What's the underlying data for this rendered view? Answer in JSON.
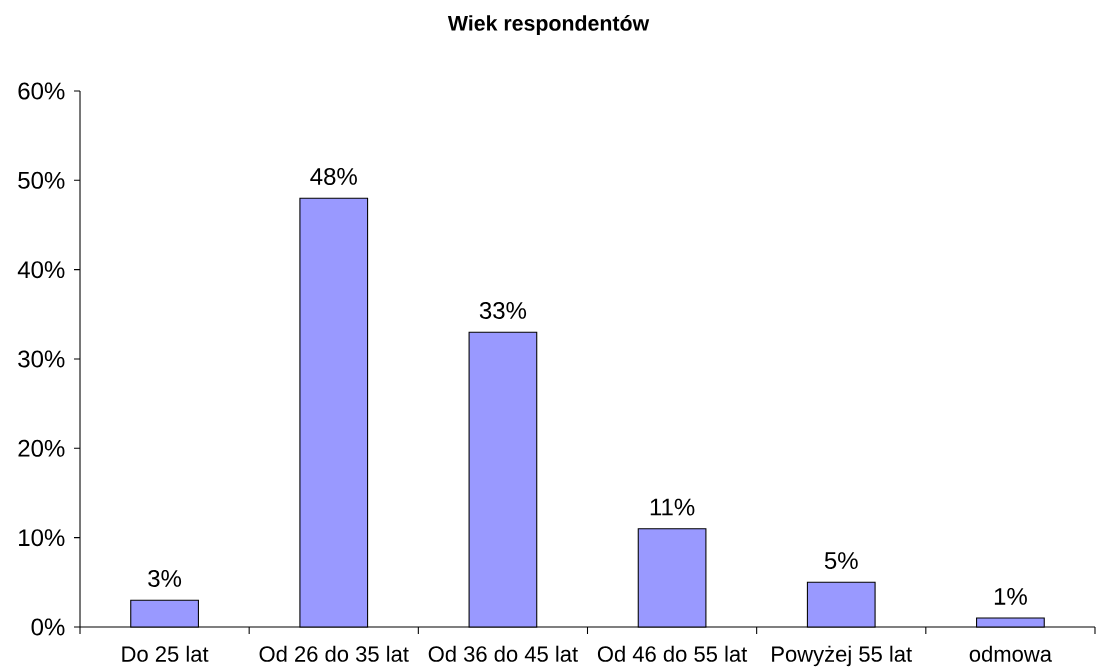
{
  "chart_data": {
    "type": "bar",
    "title": "Wiek respondentów",
    "categories": [
      "Do 25 lat",
      "Od 26 do 35 lat",
      "Od 36 do 45 lat",
      "Od 46 do 55 lat",
      "Powyżej 55 lat",
      "odmowa"
    ],
    "values": [
      3,
      48,
      33,
      11,
      5,
      1
    ],
    "color": "#9999ff",
    "value_labels": [
      "3%",
      "48%",
      "33%",
      "11%",
      "5%",
      "1%"
    ],
    "ylim": [
      0,
      60
    ],
    "yticks": [
      {
        "value": 0,
        "label": "0%"
      },
      {
        "value": 10,
        "label": "10%"
      },
      {
        "value": 20,
        "label": "20%"
      },
      {
        "value": 30,
        "label": "30%"
      },
      {
        "value": 40,
        "label": "40%"
      },
      {
        "value": 50,
        "label": "50%"
      },
      {
        "value": 60,
        "label": "60%"
      }
    ]
  }
}
